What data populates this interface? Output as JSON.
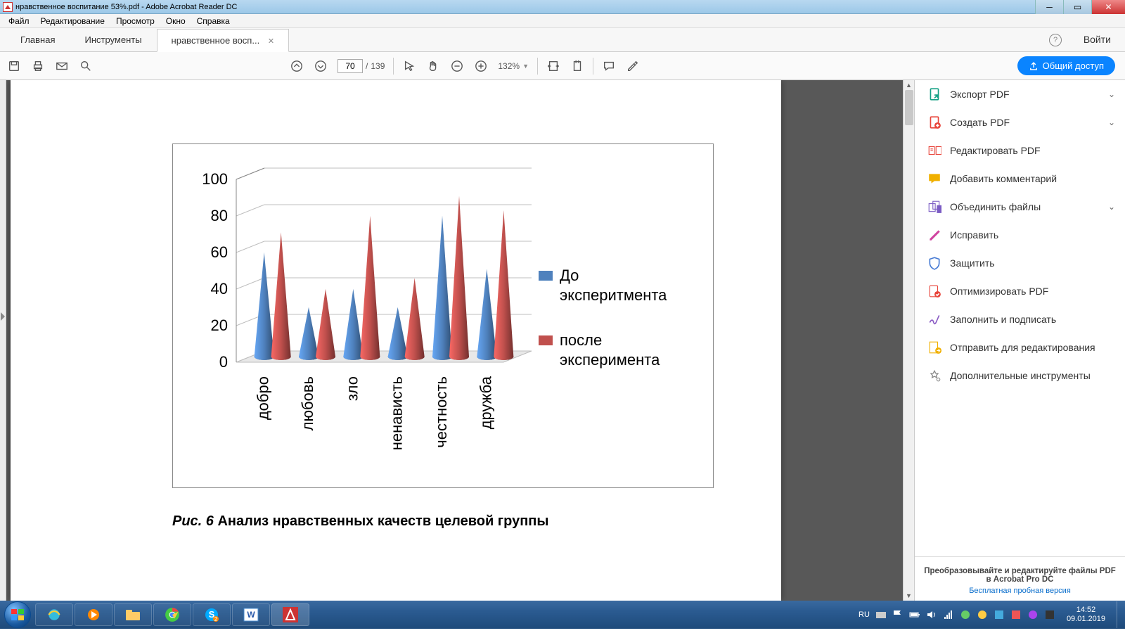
{
  "window": {
    "title": "нравственное воспитание 53%.pdf - Adobe Acrobat Reader DC"
  },
  "menu": {
    "items": [
      "Файл",
      "Редактирование",
      "Просмотр",
      "Окно",
      "Справка"
    ]
  },
  "tabs": {
    "home": "Главная",
    "tools": "Инструменты",
    "doc": "нравственное восп...",
    "signin": "Войти"
  },
  "toolbar": {
    "page_current": "70",
    "page_total": "139",
    "zoom": "132%"
  },
  "share_button": "Общий доступ",
  "chart": {
    "type": "cone-bar-grouped",
    "categories": [
      "добро",
      "любовь",
      "зло",
      "ненависть",
      "честность",
      "дружба"
    ],
    "series": [
      {
        "name": "До эксперитмента",
        "color": "#4f81bd",
        "values": [
          57,
          27,
          37,
          27,
          77,
          48
        ]
      },
      {
        "name": "после эксперимента",
        "color": "#c0504d",
        "values": [
          68,
          37,
          77,
          43,
          88,
          80
        ]
      }
    ],
    "y_axis": {
      "min": 0,
      "max": 100,
      "step": 20,
      "labels": [
        "0",
        "20",
        "40",
        "60",
        "80",
        "100"
      ]
    },
    "plot": {
      "grid_color": "#bfbfbf",
      "background": "#ffffff",
      "floor_color": "#d9d9d9",
      "axis_font_size": 22,
      "category_font_size": 22,
      "legend_font_size": 22
    }
  },
  "caption": {
    "prefix": "Рис. 6",
    "text": "  Анализ нравственных качеств целевой группы"
  },
  "right_panel": {
    "items": [
      {
        "label": "Экспорт PDF",
        "chev": true,
        "color": "#14a085",
        "icon": "export"
      },
      {
        "label": "Создать PDF",
        "chev": true,
        "color": "#e8443a",
        "icon": "create"
      },
      {
        "label": "Редактировать PDF",
        "chev": false,
        "color": "#e8443a",
        "icon": "edit"
      },
      {
        "label": "Добавить комментарий",
        "chev": false,
        "color": "#f0b000",
        "icon": "comment"
      },
      {
        "label": "Объединить файлы",
        "chev": true,
        "color": "#7b5cc4",
        "icon": "combine"
      },
      {
        "label": "Исправить",
        "chev": false,
        "color": "#d044a0",
        "icon": "redact"
      },
      {
        "label": "Защитить",
        "chev": false,
        "color": "#4a7dd4",
        "icon": "protect"
      },
      {
        "label": "Оптимизировать PDF",
        "chev": false,
        "color": "#e8443a",
        "icon": "optimize"
      },
      {
        "label": "Заполнить и подписать",
        "chev": false,
        "color": "#8a5cc4",
        "icon": "sign"
      },
      {
        "label": "Отправить для редактирования",
        "chev": false,
        "color": "#f0b000",
        "icon": "send"
      },
      {
        "label": "Дополнительные инструменты",
        "chev": false,
        "color": "#888",
        "icon": "more"
      }
    ],
    "footer1": "Преобразовывайте и редактируйте файлы PDF",
    "footer2": "в Acrobat Pro DC",
    "footer_link": "Бесплатная пробная версия"
  },
  "taskbar": {
    "lang": "RU",
    "time": "14:52",
    "date": "09.01.2019"
  }
}
